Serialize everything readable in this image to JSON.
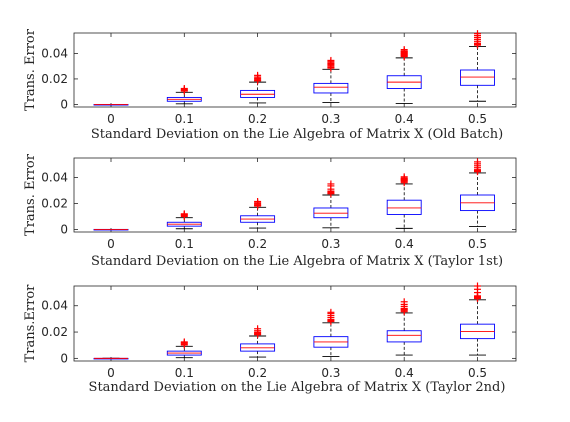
{
  "chart_data": [
    {
      "type": "box",
      "xlabel": "Standard Deviation on the Lie Algebra of Matrix X (Old Batch)",
      "ylabel": "Trans. Error",
      "categories": [
        "0",
        "0.1",
        "0.2",
        "0.3",
        "0.4",
        "0.5"
      ],
      "yticks": [
        0,
        0.02,
        0.04
      ],
      "ytick_labels": [
        "0",
        "0.02",
        "0.04"
      ],
      "ylim": [
        -0.002,
        0.056
      ],
      "grid": false,
      "box_color": "#0000ff",
      "median_color": "#ff0000",
      "whisker_color": "#000000",
      "outlier_color": "#ff0000",
      "boxes": [
        {
          "category": "0",
          "whislo": 0,
          "q1": 0,
          "med": 0,
          "q3": 0,
          "whishi": 0,
          "outliers": []
        },
        {
          "category": "0.1",
          "whislo": 0.0005,
          "q1": 0.0025,
          "med": 0.004,
          "q3": 0.0055,
          "whishi": 0.0095,
          "outliers": [
            0.0105,
            0.011,
            0.0118,
            0.0125
          ]
        },
        {
          "category": "0.2",
          "whislo": 0.0012,
          "q1": 0.0055,
          "med": 0.008,
          "q3": 0.011,
          "whishi": 0.0175,
          "outliers": [
            0.0185,
            0.019,
            0.0198,
            0.0205,
            0.0215,
            0.0228
          ]
        },
        {
          "category": "0.3",
          "whislo": 0.0015,
          "q1": 0.009,
          "med": 0.0135,
          "q3": 0.0165,
          "whishi": 0.0275,
          "outliers": [
            0.0285,
            0.029,
            0.03,
            0.031,
            0.0318,
            0.0325,
            0.0335,
            0.0345
          ]
        },
        {
          "category": "0.4",
          "whislo": 0.0008,
          "q1": 0.0125,
          "med": 0.0175,
          "q3": 0.0225,
          "whishi": 0.0365,
          "outliers": [
            0.0375,
            0.038,
            0.0385,
            0.039,
            0.0395,
            0.04,
            0.0405,
            0.041,
            0.0415,
            0.042,
            0.043
          ]
        },
        {
          "category": "0.5",
          "whislo": 0.0025,
          "q1": 0.015,
          "med": 0.0215,
          "q3": 0.027,
          "whishi": 0.0455,
          "outliers": [
            0.0465,
            0.047,
            0.0475,
            0.048,
            0.0495,
            0.051,
            0.0525,
            0.054,
            0.0555
          ]
        }
      ]
    },
    {
      "type": "box",
      "xlabel": "Standard Deviation on the Lie Algebra of Matrix X (Taylor 1st)",
      "ylabel": "Trans. Error",
      "categories": [
        "0",
        "0.1",
        "0.2",
        "0.3",
        "0.4",
        "0.5"
      ],
      "yticks": [
        0,
        0.02,
        0.04
      ],
      "ytick_labels": [
        "0",
        "0.02",
        "0.04"
      ],
      "ylim": [
        -0.002,
        0.055
      ],
      "grid": false,
      "box_color": "#0000ff",
      "median_color": "#ff0000",
      "whisker_color": "#000000",
      "outlier_color": "#ff0000",
      "boxes": [
        {
          "category": "0",
          "whislo": 0,
          "q1": 0,
          "med": 0,
          "q3": 0,
          "whishi": 0,
          "outliers": []
        },
        {
          "category": "0.1",
          "whislo": 0.0005,
          "q1": 0.0025,
          "med": 0.004,
          "q3": 0.0055,
          "whishi": 0.009,
          "outliers": [
            0.01,
            0.0108,
            0.0115,
            0.012
          ]
        },
        {
          "category": "0.2",
          "whislo": 0.001,
          "q1": 0.0055,
          "med": 0.008,
          "q3": 0.0105,
          "whishi": 0.017,
          "outliers": [
            0.018,
            0.0185,
            0.019,
            0.0198,
            0.0205,
            0.0215
          ]
        },
        {
          "category": "0.3",
          "whislo": 0.0012,
          "q1": 0.009,
          "med": 0.0125,
          "q3": 0.0165,
          "whishi": 0.0265,
          "outliers": [
            0.0275,
            0.028,
            0.0288,
            0.0295,
            0.031,
            0.0335,
            0.035
          ]
        },
        {
          "category": "0.4",
          "whislo": 0.0008,
          "q1": 0.0115,
          "med": 0.0165,
          "q3": 0.0225,
          "whishi": 0.035,
          "outliers": [
            0.036,
            0.037,
            0.0375,
            0.038,
            0.0385,
            0.039,
            0.0395,
            0.0405
          ]
        },
        {
          "category": "0.5",
          "whislo": 0.0022,
          "q1": 0.0145,
          "med": 0.0205,
          "q3": 0.0265,
          "whishi": 0.0435,
          "outliers": [
            0.0445,
            0.045,
            0.0455,
            0.046,
            0.0475,
            0.049,
            0.0505,
            0.052
          ]
        }
      ]
    },
    {
      "type": "box",
      "xlabel": "Standard Deviation on the Lie Algebra of Matrix X (Taylor 2nd)",
      "ylabel": "Trans.Error",
      "categories": [
        "0",
        "0.1",
        "0.2",
        "0.3",
        "0.4",
        "0.5"
      ],
      "yticks": [
        0,
        0.02,
        0.04
      ],
      "ytick_labels": [
        "0",
        "0.02",
        "0.04"
      ],
      "ylim": [
        -0.002,
        0.055
      ],
      "grid": false,
      "box_color": "#0000ff",
      "median_color": "#ff0000",
      "whisker_color": "#000000",
      "outlier_color": "#ff0000",
      "boxes": [
        {
          "category": "0",
          "whislo": 0,
          "q1": 0,
          "med": 0,
          "q3": 0,
          "whishi": 0,
          "outliers": []
        },
        {
          "category": "0.1",
          "whislo": 0.0005,
          "q1": 0.0025,
          "med": 0.004,
          "q3": 0.0055,
          "whishi": 0.0092,
          "outliers": [
            0.0102,
            0.011,
            0.0118,
            0.0125
          ]
        },
        {
          "category": "0.2",
          "whislo": 0.001,
          "q1": 0.0055,
          "med": 0.008,
          "q3": 0.011,
          "whishi": 0.017,
          "outliers": [
            0.018,
            0.0185,
            0.0192,
            0.0198,
            0.021,
            0.0225
          ]
        },
        {
          "category": "0.3",
          "whislo": 0.0015,
          "q1": 0.0085,
          "med": 0.0125,
          "q3": 0.0165,
          "whishi": 0.027,
          "outliers": [
            0.028,
            0.0288,
            0.0295,
            0.031,
            0.0325,
            0.034,
            0.035
          ]
        },
        {
          "category": "0.4",
          "whislo": 0.0025,
          "q1": 0.0125,
          "med": 0.0175,
          "q3": 0.021,
          "whishi": 0.0345,
          "outliers": [
            0.0355,
            0.0365,
            0.037,
            0.0375,
            0.038,
            0.0395,
            0.041,
            0.043
          ]
        },
        {
          "category": "0.5",
          "whislo": 0.0025,
          "q1": 0.015,
          "med": 0.0205,
          "q3": 0.026,
          "whishi": 0.0445,
          "outliers": [
            0.0455,
            0.046,
            0.0465,
            0.047,
            0.0475,
            0.05,
            0.0525,
            0.055
          ]
        }
      ]
    }
  ]
}
